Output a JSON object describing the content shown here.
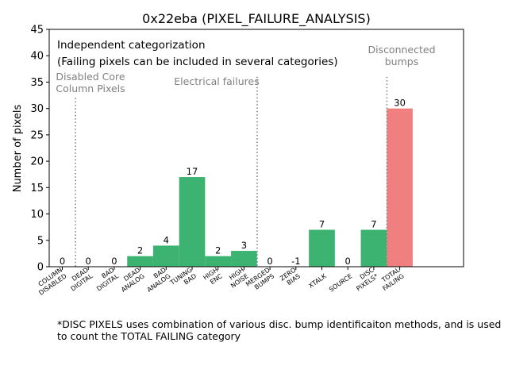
{
  "chart_data": {
    "type": "bar",
    "title": "0x22eba (PIXEL_FAILURE_ANALYSIS)",
    "xlabel": "",
    "ylabel": "Number of pixels",
    "ylim": [
      0,
      45
    ],
    "yticks": [
      0,
      5,
      10,
      15,
      20,
      25,
      30,
      35,
      40,
      45
    ],
    "categories": [
      {
        "lines": [
          "COLUMN",
          "DISABLED"
        ],
        "value": 0,
        "label": "0",
        "group": "disabled"
      },
      {
        "lines": [
          "DEAD",
          "DIGITAL"
        ],
        "value": 0,
        "label": "0",
        "group": "electrical"
      },
      {
        "lines": [
          "BAD",
          "DIGITAL"
        ],
        "value": 0,
        "label": "0",
        "group": "electrical"
      },
      {
        "lines": [
          "DEAD",
          "ANALOG"
        ],
        "value": 2,
        "label": "2",
        "group": "electrical"
      },
      {
        "lines": [
          "BAD",
          "ANALOG"
        ],
        "value": 4,
        "label": "4",
        "group": "electrical"
      },
      {
        "lines": [
          "TUNING",
          "BAD"
        ],
        "value": 17,
        "label": "17",
        "group": "electrical"
      },
      {
        "lines": [
          "HIGH",
          "ENC"
        ],
        "value": 2,
        "label": "2",
        "group": "electrical"
      },
      {
        "lines": [
          "HIGH",
          "NOISE"
        ],
        "value": 3,
        "label": "3",
        "group": "electrical"
      },
      {
        "lines": [
          "MERGED",
          "BUMPS"
        ],
        "value": 0,
        "label": "0",
        "group": "disconnected"
      },
      {
        "lines": [
          "ZERO",
          "BIAS"
        ],
        "value": -1,
        "label": "-1",
        "group": "disconnected"
      },
      {
        "lines": [
          "XTALK"
        ],
        "value": 7,
        "label": "7",
        "group": "disconnected"
      },
      {
        "lines": [
          "SOURCE"
        ],
        "value": 0,
        "label": "0",
        "group": "disconnected"
      },
      {
        "lines": [
          "DISC",
          "PIXELS*"
        ],
        "value": 7,
        "label": "7",
        "group": "disconnected"
      },
      {
        "lines": [
          "TOTAL",
          "FAILING"
        ],
        "value": 30,
        "label": "30",
        "group": "total"
      }
    ],
    "colors": {
      "bar": "#3cb371",
      "total": "#f08080",
      "divider": "#808080",
      "region_text": "#808080"
    },
    "annotations": {
      "note_line1": "Independent categorization",
      "note_line2": "(Failing pixels can be included in several categories)",
      "region_disabled": [
        "Disabled Core",
        "Column Pixels"
      ],
      "region_electrical": [
        "Electrical failures"
      ],
      "region_disconnected": [
        "Disconnected",
        "bumps"
      ]
    }
  },
  "footnote": "*DISC PIXELS uses combination of various disc. bump identificaiton methods, and is used\nto count the TOTAL FAILING category"
}
